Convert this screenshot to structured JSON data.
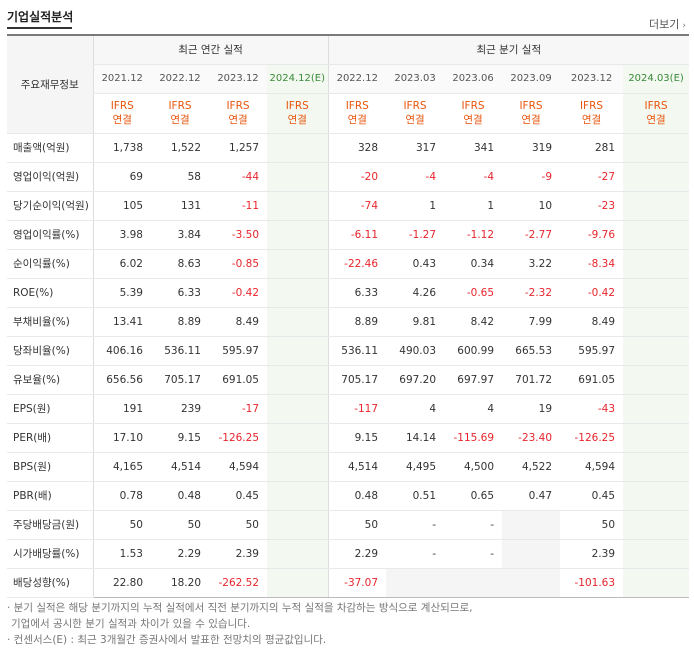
{
  "title": "기업실적분석",
  "more": "더보기",
  "header": {
    "corner": "주요재무정보",
    "annual_group": "최근 연간 실적",
    "quarter_group": "최근 분기 실적",
    "periods": [
      "2021.12",
      "2022.12",
      "2023.12",
      "2024.12(E)",
      "2022.12",
      "2023.03",
      "2023.06",
      "2023.09",
      "2023.12",
      "2024.03(E)"
    ],
    "ifrs_top": "IFRS",
    "ifrs_bottom": "연결"
  },
  "rows": [
    {
      "label": "매출액(억원)",
      "values": [
        "1,738",
        "1,522",
        "1,257",
        "",
        "328",
        "317",
        "341",
        "319",
        "281",
        ""
      ]
    },
    {
      "label": "영업이익(억원)",
      "values": [
        "69",
        "58",
        "-44",
        "",
        "-20",
        "-4",
        "-4",
        "-9",
        "-27",
        ""
      ]
    },
    {
      "label": "당기순이익(억원)",
      "values": [
        "105",
        "131",
        "-11",
        "",
        "-74",
        "1",
        "1",
        "10",
        "-23",
        ""
      ]
    },
    {
      "label": "영업이익률(%)",
      "values": [
        "3.98",
        "3.84",
        "-3.50",
        "",
        "-6.11",
        "-1.27",
        "-1.12",
        "-2.77",
        "-9.76",
        ""
      ]
    },
    {
      "label": "순이익률(%)",
      "values": [
        "6.02",
        "8.63",
        "-0.85",
        "",
        "-22.46",
        "0.43",
        "0.34",
        "3.22",
        "-8.34",
        ""
      ]
    },
    {
      "label": "ROE(%)",
      "values": [
        "5.39",
        "6.33",
        "-0.42",
        "",
        "6.33",
        "4.26",
        "-0.65",
        "-2.32",
        "-0.42",
        ""
      ]
    },
    {
      "label": "부채비율(%)",
      "values": [
        "13.41",
        "8.89",
        "8.49",
        "",
        "8.89",
        "9.81",
        "8.42",
        "7.99",
        "8.49",
        ""
      ]
    },
    {
      "label": "당좌비율(%)",
      "values": [
        "406.16",
        "536.11",
        "595.97",
        "",
        "536.11",
        "490.03",
        "600.99",
        "665.53",
        "595.97",
        ""
      ]
    },
    {
      "label": "유보율(%)",
      "values": [
        "656.56",
        "705.17",
        "691.05",
        "",
        "705.17",
        "697.20",
        "697.97",
        "701.72",
        "691.05",
        ""
      ]
    },
    {
      "label": "EPS(원)",
      "values": [
        "191",
        "239",
        "-17",
        "",
        "-117",
        "4",
        "4",
        "19",
        "-43",
        ""
      ]
    },
    {
      "label": "PER(배)",
      "values": [
        "17.10",
        "9.15",
        "-126.25",
        "",
        "9.15",
        "14.14",
        "-115.69",
        "-23.40",
        "-126.25",
        ""
      ]
    },
    {
      "label": "BPS(원)",
      "values": [
        "4,165",
        "4,514",
        "4,594",
        "",
        "4,514",
        "4,495",
        "4,500",
        "4,522",
        "4,594",
        ""
      ]
    },
    {
      "label": "PBR(배)",
      "values": [
        "0.78",
        "0.48",
        "0.45",
        "",
        "0.48",
        "0.51",
        "0.65",
        "0.47",
        "0.45",
        ""
      ]
    },
    {
      "label": "주당배당금(원)",
      "values": [
        "50",
        "50",
        "50",
        "",
        "50",
        "-",
        "-",
        "",
        "50",
        ""
      ]
    },
    {
      "label": "시가배당률(%)",
      "values": [
        "1.53",
        "2.29",
        "2.39",
        "",
        "2.29",
        "-",
        "-",
        "",
        "2.39",
        ""
      ]
    },
    {
      "label": "배당성향(%)",
      "values": [
        "22.80",
        "18.20",
        "-262.52",
        "",
        "-37.07",
        "",
        "",
        "",
        "-101.63",
        ""
      ]
    }
  ],
  "notes": [
    "· 분기 실적은 해당 분기까지의 누적 실적에서 직전 분기까지의 누적 실적을 차감하는 방식으로 계산되므로,",
    "  기업에서 공시한 분기 실적과 차이가 있을 수 있습니다.",
    "· 컨센서스(E) : 최근 3개월간 증권사에서 발표한 전망치의 평균값입니다."
  ]
}
